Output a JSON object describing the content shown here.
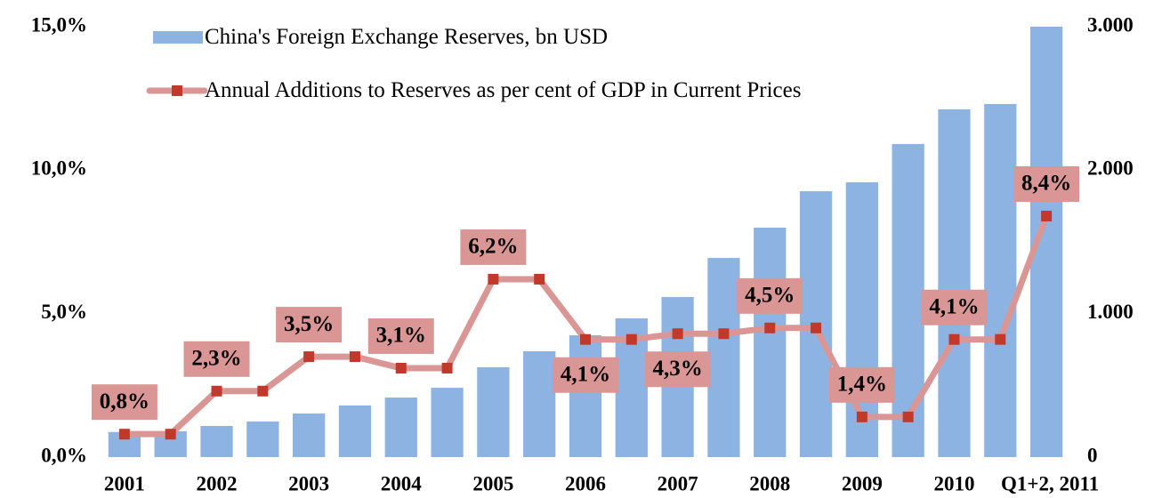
{
  "chart_data": {
    "type": "bar+line",
    "categories": [
      "2001",
      null,
      "2002",
      null,
      "2003",
      null,
      "2004",
      null,
      "2005",
      null,
      "2006",
      null,
      "2007",
      null,
      "2008",
      null,
      "2009",
      null,
      "2010",
      null,
      "Q1+2, 2011"
    ],
    "series": [
      {
        "name": "China's Foreign Exchange Reserves, bn USD",
        "type": "bar",
        "axis": "y2",
        "color": "#8db3e2",
        "values": [
          175,
          180,
          217,
          248,
          304,
          360,
          415,
          483,
          626,
          738,
          849,
          967,
          1116,
          1388,
          1599,
          1853,
          1915,
          2182,
          2424,
          2461,
          3000
        ]
      },
      {
        "name": "Annual Additions to Reserves as per cent of GDP in Current Prices",
        "type": "line",
        "color": "#d99694",
        "marker_color": "#c0392b",
        "values": [
          0.8,
          0.8,
          2.3,
          2.3,
          3.5,
          3.5,
          3.1,
          3.1,
          6.2,
          6.2,
          4.1,
          4.1,
          4.3,
          4.3,
          4.5,
          4.5,
          1.4,
          1.4,
          4.1,
          4.1,
          8.4
        ],
        "value_labels": [
          "0,8%",
          null,
          "2,3%",
          null,
          "3,5%",
          null,
          "3,1%",
          null,
          "6,2%",
          null,
          "4,1%",
          null,
          "4,3%",
          null,
          "4,5%",
          null,
          "1,4%",
          null,
          "4,1%",
          null,
          "8,4%"
        ]
      }
    ],
    "ylim": [
      0,
      15
    ],
    "yticks": [
      {
        "value": 0,
        "label": "0,0%"
      },
      {
        "value": 5,
        "label": "5,0%"
      },
      {
        "value": 10,
        "label": "10,0%"
      },
      {
        "value": 15,
        "label": "15,0%"
      }
    ],
    "y2lim": [
      0,
      3000
    ],
    "y2ticks": [
      {
        "value": 0,
        "label": "0"
      },
      {
        "value": 1000,
        "label": "1.000"
      },
      {
        "value": 2000,
        "label": "2.000"
      },
      {
        "value": 3000,
        "label": "3.000"
      }
    ],
    "grid": false,
    "legend": "top-left"
  }
}
